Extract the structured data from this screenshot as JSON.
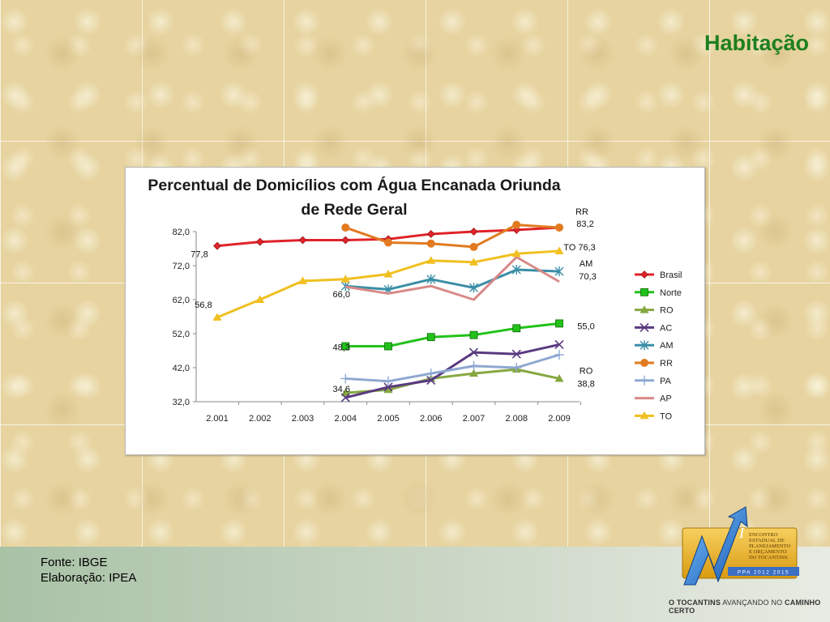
{
  "page": {
    "title": "Habitação",
    "source": "Fonte: IBGE",
    "author": "Elaboração: IPEA",
    "slogan_prefix": "O TOCANTINS",
    "slogan_middle": "AVANÇANDO NO",
    "slogan_suffix": "CAMINHO CERTO"
  },
  "logo": {
    "line1": "ENCONTRO",
    "line2": "ESTADUAL DE",
    "line3": "PLANEJAMENTO",
    "line4": "E ORÇAMENTO",
    "line5": "DO TOCANTINS",
    "band": "PPA 2012 2015",
    "roman": "I"
  },
  "chart_data": {
    "type": "line",
    "title_line1": "Percentual de Domicílios com Água Encanada Oriunda",
    "title_line2": "de Rede Geral",
    "categories": [
      "2.001",
      "2.002",
      "2.003",
      "2.004",
      "2.005",
      "2.006",
      "2.007",
      "2.008",
      "2.009"
    ],
    "ylim": [
      32,
      84
    ],
    "yticks": [
      32,
      42,
      52,
      62,
      72,
      82
    ],
    "ytick_labels": [
      "32,0",
      "42,0",
      "52,0",
      "62,0",
      "72,0",
      "82,0"
    ],
    "legend_position": "right",
    "grid": false,
    "series": [
      {
        "name": "Brasil",
        "color": "#e0232a",
        "marker": "diamond",
        "values": [
          77.8,
          79.0,
          79.5,
          79.5,
          79.8,
          81.3,
          82.0,
          82.5,
          83.2
        ]
      },
      {
        "name": "Norte",
        "color": "#22c21a",
        "marker": "square",
        "values": [
          null,
          null,
          null,
          48.3,
          48.3,
          51.0,
          51.6,
          53.6,
          55.0
        ]
      },
      {
        "name": "RO",
        "color": "#86a840",
        "marker": "triangle",
        "values": [
          null,
          null,
          null,
          34.6,
          35.5,
          38.8,
          40.3,
          41.5,
          38.8
        ]
      },
      {
        "name": "AC",
        "color": "#5a3a80",
        "marker": "x",
        "values": [
          null,
          null,
          null,
          33.2,
          36.3,
          38.3,
          46.5,
          46.0,
          48.8
        ]
      },
      {
        "name": "AM",
        "color": "#3a8ea6",
        "marker": "asterisk",
        "values": [
          null,
          null,
          null,
          66.0,
          65.0,
          68.0,
          65.5,
          70.8,
          70.3
        ]
      },
      {
        "name": "RR",
        "color": "#e27a20",
        "marker": "circle",
        "values": [
          null,
          null,
          null,
          83.2,
          78.8,
          78.5,
          77.5,
          84.0,
          83.2
        ]
      },
      {
        "name": "PA",
        "color": "#8ea8d2",
        "marker": "plus",
        "values": [
          null,
          null,
          null,
          38.8,
          38.0,
          40.3,
          42.5,
          42.0,
          45.8
        ]
      },
      {
        "name": "AP",
        "color": "#d88a88",
        "marker": "none",
        "values": [
          null,
          null,
          null,
          65.8,
          63.8,
          66.0,
          62.0,
          74.5,
          67.3
        ]
      },
      {
        "name": "TO",
        "color": "#f0c020",
        "marker": "triangle",
        "values": [
          56.8,
          62.0,
          67.5,
          68.0,
          69.5,
          73.5,
          73.0,
          75.5,
          76.3
        ]
      }
    ],
    "annotations": [
      {
        "text": "77,8",
        "x": "2.001",
        "y": 77.8
      },
      {
        "text": "56,8",
        "x": "2.001",
        "y": 56.8
      },
      {
        "text": "66,0",
        "x": "2.004",
        "y": 66.0
      },
      {
        "text": "48,3",
        "x": "2.004",
        "y": 48.3
      },
      {
        "text": "34,6",
        "x": "2.004",
        "y": 34.6
      },
      {
        "text": "RR",
        "x": "2.009",
        "y": 83.2
      },
      {
        "text": "83,2",
        "x": "2.009",
        "y": 83.2
      },
      {
        "text": "TO  76,3",
        "x": "2.009",
        "y": 76.3
      },
      {
        "text": "AM",
        "x": "2.009",
        "y": 70.3
      },
      {
        "text": "70,3",
        "x": "2.009",
        "y": 70.3
      },
      {
        "text": "55,0",
        "x": "2.009",
        "y": 55.0
      },
      {
        "text": "RO",
        "x": "2.009",
        "y": 38.8
      },
      {
        "text": "38,8",
        "x": "2.009",
        "y": 38.8
      }
    ]
  }
}
